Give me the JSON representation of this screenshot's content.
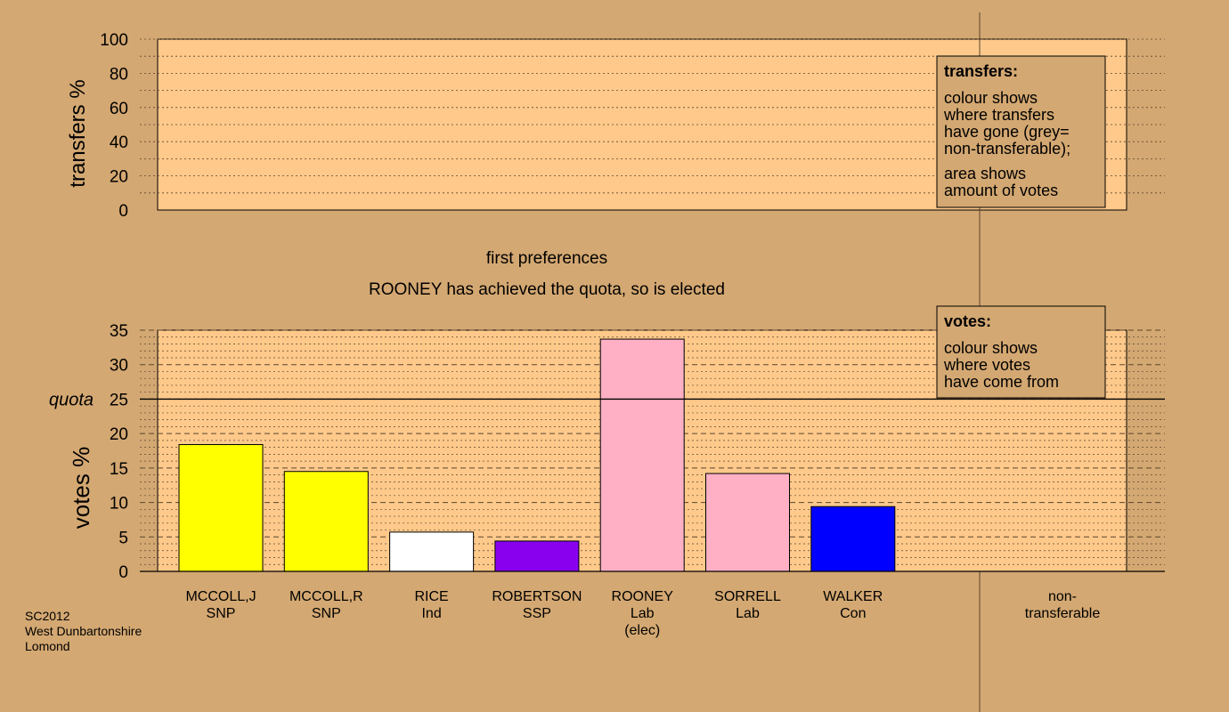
{
  "footer": {
    "lines": [
      "SC2012",
      "West Dunbartonshire",
      "Lomond"
    ]
  },
  "stage_title": "first preferences",
  "status_message": "ROONEY has achieved the quota, so is elected",
  "colors": {
    "background": "#d4a872",
    "plot_background": "#fec98a",
    "legend_box": "#d4a872",
    "snp": "#ffff00",
    "ind": "#ffffff",
    "ssp": "#8800ee",
    "lab": "#ffb0c4",
    "con": "#0000ff"
  },
  "legend_transfers": {
    "title": "transfers:",
    "para1": [
      "colour shows",
      "where transfers",
      "have gone (grey=",
      "non-transferable);"
    ],
    "para2": [
      "area shows",
      "amount of votes"
    ]
  },
  "legend_votes": {
    "title": "votes:",
    "para1": [
      "colour shows",
      "where votes",
      "have come from"
    ]
  },
  "chart_data": [
    {
      "type": "bar",
      "ylabel": "transfers %",
      "ylim": [
        0,
        100
      ],
      "yticks": [
        0,
        20,
        40,
        60,
        80,
        100
      ],
      "grid": true,
      "values": []
    },
    {
      "type": "bar",
      "ylabel": "votes %",
      "ylim": [
        0,
        35
      ],
      "yticks": [
        0,
        5,
        10,
        15,
        20,
        25,
        30,
        35
      ],
      "grid": true,
      "quota": {
        "label": "quota",
        "value": 25
      },
      "categories": [
        {
          "name": "MCCOLL,J",
          "party": "SNP",
          "note": "",
          "value": 18.4,
          "color": "#ffff00"
        },
        {
          "name": "MCCOLL,R",
          "party": "SNP",
          "note": "",
          "value": 14.5,
          "color": "#ffff00"
        },
        {
          "name": "RICE",
          "party": "Ind",
          "note": "",
          "value": 5.7,
          "color": "#ffffff"
        },
        {
          "name": "ROBERTSON",
          "party": "SSP",
          "note": "",
          "value": 4.4,
          "color": "#8800ee"
        },
        {
          "name": "ROONEY",
          "party": "Lab",
          "note": "(elec)",
          "value": 33.7,
          "color": "#ffb0c4"
        },
        {
          "name": "SORRELL",
          "party": "Lab",
          "note": "",
          "value": 14.2,
          "color": "#ffb0c4"
        },
        {
          "name": "WALKER",
          "party": "Con",
          "note": "",
          "value": 9.4,
          "color": "#0000ff"
        }
      ],
      "extra_category": {
        "lines": [
          "non-",
          "transferable"
        ],
        "value": 0
      }
    }
  ]
}
